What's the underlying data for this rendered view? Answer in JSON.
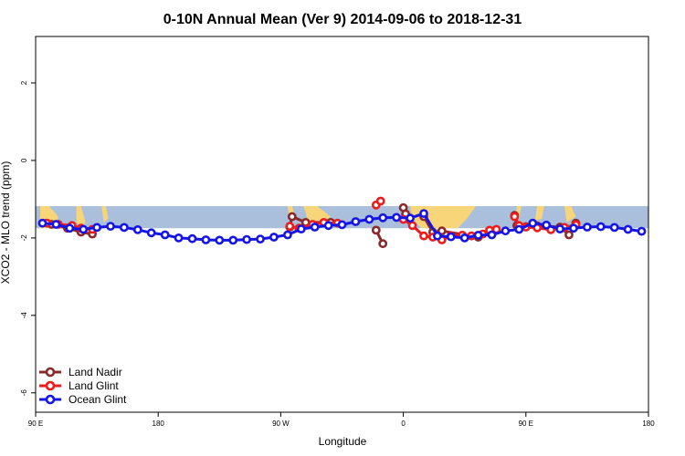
{
  "chart_data": {
    "type": "line",
    "title": "0-10N Annual Mean (Ver 9)   2014-09-06 to 2018-12-31",
    "xlabel": "Longitude",
    "ylabel": "XCO2 - MLO trend (ppm)",
    "xlim": [
      -90,
      180
    ],
    "ylim": [
      -6.5,
      3.2
    ],
    "x_ticks": [
      {
        "value": -90,
        "label": "90 E"
      },
      {
        "value": -36,
        "label": "180"
      },
      {
        "value": 18,
        "label": "90 W"
      },
      {
        "value": 72,
        "label": "0"
      },
      {
        "value": 126,
        "label": "90 E"
      },
      {
        "value": 180,
        "label": "180"
      }
    ],
    "y_ticks": [
      -6,
      -4,
      -2,
      0,
      2
    ],
    "background_band": {
      "y_range": [
        -1.75,
        -1.18
      ],
      "color": "#a9bfdc"
    },
    "land_color": "#f9d57a",
    "legend_position": "bottom-left",
    "series": [
      {
        "name": "Land Nadir",
        "color": "#8b2a2a",
        "x": [
          -83,
          -76,
          -70,
          -65,
          22,
          23,
          29,
          40,
          60,
          63,
          72,
          73,
          81,
          85,
          89,
          105,
          121,
          122,
          126,
          131,
          141,
          145,
          148
        ],
        "y": [
          -1.65,
          -1.75,
          -1.85,
          -1.9,
          -1.72,
          -1.45,
          -1.6,
          -1.6,
          -1.8,
          -2.15,
          -1.22,
          -1.38,
          -1.45,
          -1.85,
          -1.82,
          -1.98,
          -1.42,
          -1.68,
          -1.71,
          -1.69,
          -1.72,
          -1.92,
          -1.62
        ],
        "groups": [
          [
            0,
            1,
            2,
            3
          ],
          [
            4,
            5,
            6,
            7
          ],
          [
            8,
            9
          ],
          [
            10,
            11
          ],
          [
            12,
            13,
            14,
            15
          ],
          [
            16,
            17,
            18
          ],
          [
            19,
            20,
            21,
            22
          ]
        ]
      },
      {
        "name": "Land Glint",
        "color": "#ef1a1a",
        "x": [
          -85,
          -80,
          -74,
          -70,
          -65,
          22,
          26,
          32,
          37,
          43,
          60,
          62,
          72,
          76,
          81,
          85,
          89,
          93,
          98,
          102,
          107,
          110,
          113,
          121,
          123,
          126,
          131,
          137,
          143,
          148
        ],
        "y": [
          -1.62,
          -1.65,
          -1.68,
          -1.75,
          -1.78,
          -1.7,
          -1.75,
          -1.65,
          -1.6,
          -1.62,
          -1.15,
          -1.05,
          -1.52,
          -1.68,
          -1.95,
          -1.98,
          -2.05,
          -1.95,
          -1.93,
          -1.95,
          -1.9,
          -1.8,
          -1.78,
          -1.45,
          -1.68,
          -1.72,
          -1.74,
          -1.79,
          -1.73,
          -1.66
        ],
        "groups": [
          [
            0,
            1,
            2,
            3,
            4
          ],
          [
            5,
            6,
            7,
            8,
            9
          ],
          [
            10,
            11
          ],
          [
            12,
            13,
            14,
            15,
            16,
            17,
            18,
            19,
            20,
            21,
            22
          ],
          [
            23,
            24
          ],
          [
            25,
            26,
            27,
            28,
            29
          ]
        ]
      },
      {
        "name": "Ocean Glint",
        "color": "#1515e8",
        "x": [
          -87,
          -81,
          -75,
          -69,
          -63,
          -57,
          -51,
          -45,
          -39,
          -33,
          -27,
          -21,
          -15,
          -9,
          -3,
          3,
          9,
          15,
          21,
          27,
          33,
          39,
          45,
          51,
          57,
          63,
          69,
          75,
          81,
          87,
          93,
          99,
          105,
          111,
          117,
          123,
          129,
          135,
          141,
          147,
          153,
          159,
          165,
          171,
          177
        ],
        "y": [
          -1.62,
          -1.65,
          -1.75,
          -1.78,
          -1.73,
          -1.7,
          -1.73,
          -1.79,
          -1.87,
          -1.92,
          -2.0,
          -2.02,
          -2.05,
          -2.06,
          -2.06,
          -2.04,
          -2.03,
          -1.98,
          -1.92,
          -1.77,
          -1.72,
          -1.68,
          -1.66,
          -1.58,
          -1.52,
          -1.48,
          -1.47,
          -1.49,
          -1.37,
          -1.95,
          -1.97,
          -2.0,
          -1.93,
          -1.92,
          -1.82,
          -1.78,
          -1.62,
          -1.67,
          -1.77,
          -1.75,
          -1.72,
          -1.71,
          -1.73,
          -1.78,
          -1.83
        ],
        "groups": [
          [
            0,
            1,
            2,
            3,
            4,
            5,
            6,
            7,
            8,
            9,
            10,
            11,
            12,
            13,
            14,
            15,
            16,
            17,
            18,
            19,
            20,
            21,
            22,
            23,
            24,
            25,
            26,
            27,
            28,
            29,
            30,
            31,
            32,
            33,
            34,
            35,
            36,
            37,
            38,
            39,
            40,
            41,
            42,
            43,
            44
          ]
        ]
      }
    ]
  }
}
